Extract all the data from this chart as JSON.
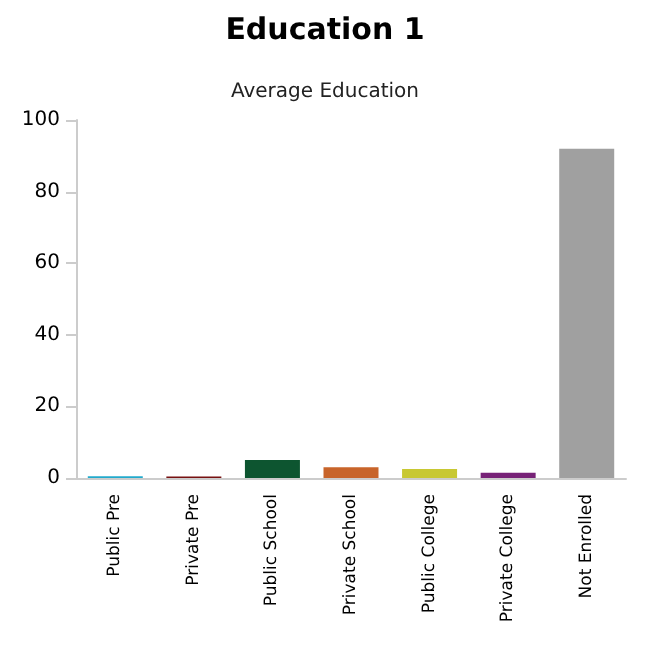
{
  "chart_data": {
    "type": "bar",
    "title": "Education 1",
    "subtitle": "Average Education",
    "categories": [
      "Public Pre",
      "Private Pre",
      "Public School",
      "Private School",
      "Public College",
      "Private College",
      "Not Enrolled"
    ],
    "values": [
      0.5,
      0.4,
      5,
      3,
      2.5,
      1.5,
      92
    ],
    "colors": [
      "#22aacc",
      "#771111",
      "#0d5530",
      "#c8642a",
      "#c8c833",
      "#772277",
      "#a0a0a0"
    ],
    "ylim": [
      0,
      100
    ],
    "yticks": [
      0,
      20,
      40,
      60,
      80,
      100
    ]
  }
}
